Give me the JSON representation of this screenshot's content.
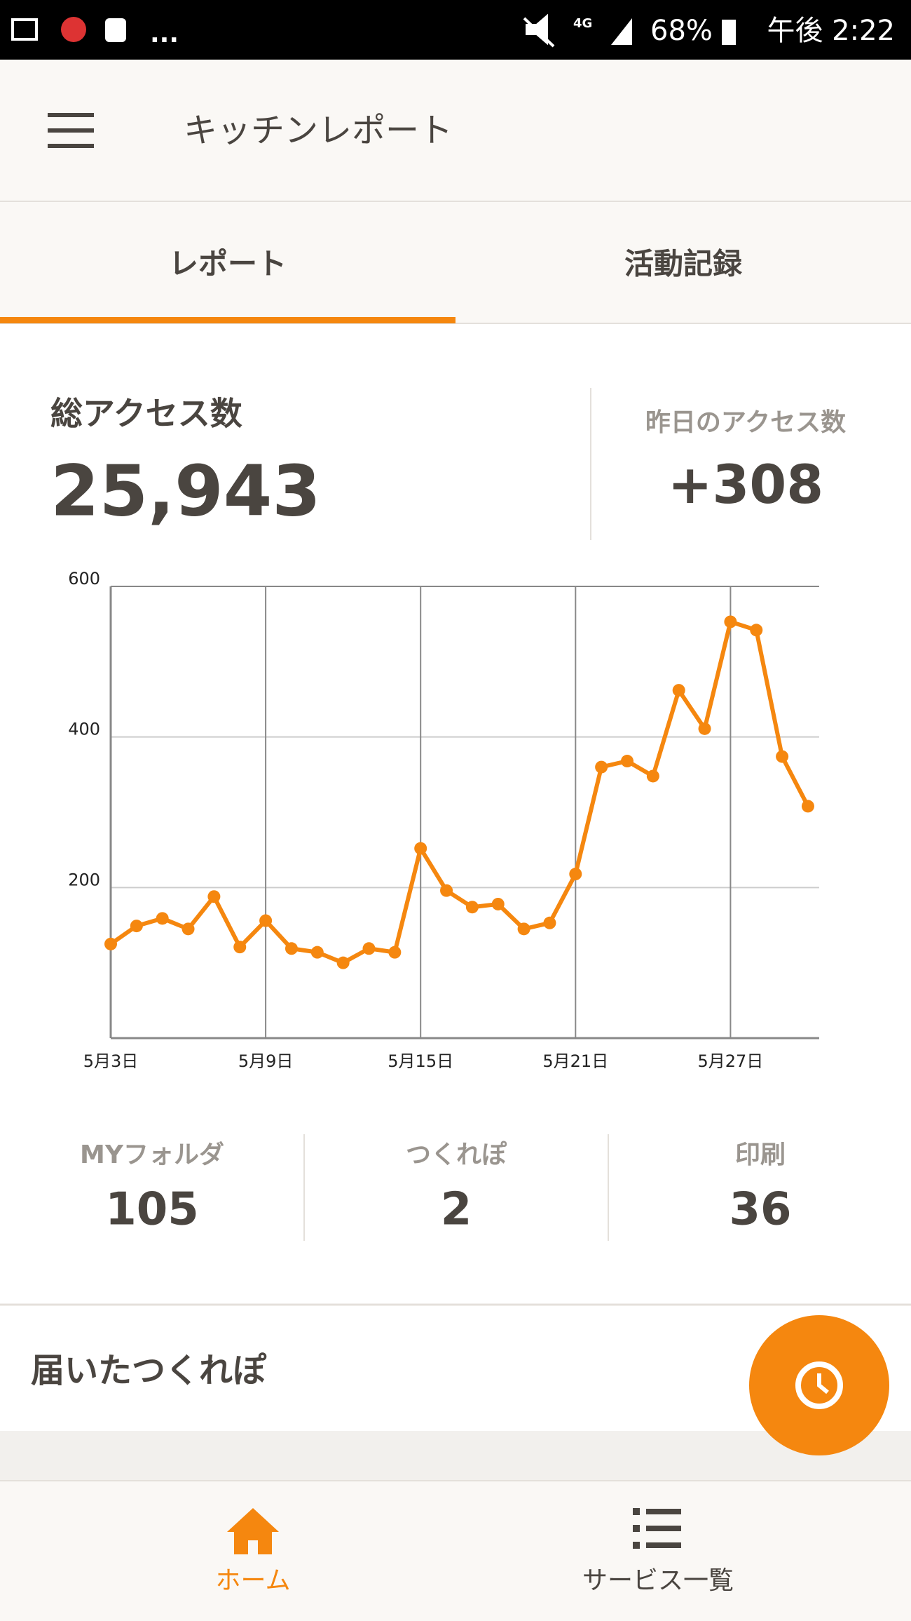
{
  "status_bar": {
    "notifications_more": "...",
    "network": "4G",
    "battery": "68%",
    "time": "午後 2:22"
  },
  "header": {
    "title": "キッチンレポート"
  },
  "tabs": [
    "レポート",
    "活動記録"
  ],
  "active_tab": 0,
  "summary": {
    "total_label": "総アクセス数",
    "total": "25,943",
    "yesterday_label": "昨日のアクセス数",
    "yesterday": "+308"
  },
  "chart_data": {
    "type": "line",
    "categories": [
      "5月3日",
      null,
      null,
      null,
      null,
      null,
      "5月9日",
      null,
      null,
      null,
      null,
      null,
      "5月15日",
      null,
      null,
      null,
      null,
      null,
      "5月21日",
      null,
      null,
      null,
      null,
      null,
      "5月27日",
      null,
      null,
      null
    ],
    "series": [
      {
        "color": "#f5870f",
        "values": [
          125,
          149,
          159,
          145,
          188,
          121,
          156,
          119,
          114,
          100,
          119,
          114,
          252,
          196,
          174,
          178,
          145,
          153,
          218,
          360,
          368,
          348,
          462,
          411,
          553,
          542,
          374,
          308
        ]
      }
    ],
    "ylim": [
      0,
      600
    ],
    "yticks": [
      200,
      400,
      600
    ],
    "grid": true
  },
  "stats": [
    {
      "label": "MYフォルダ",
      "value": 105
    },
    {
      "label": "つくれぽ",
      "value": 2
    },
    {
      "label": "印刷",
      "value": 36
    }
  ],
  "section": {
    "title": "届いたつくれぽ"
  },
  "bottom_nav": [
    "ホーム",
    "サービス一覧"
  ],
  "active_nav": 0
}
